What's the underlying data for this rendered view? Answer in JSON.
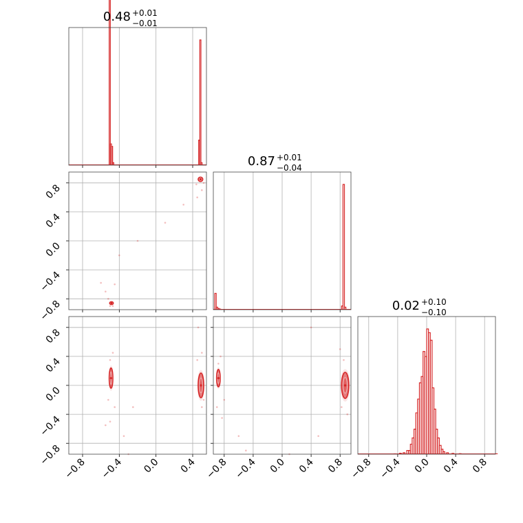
{
  "chart_data": {
    "type": "corner",
    "color": "#d62728",
    "grid": true,
    "tick_values": [
      -0.8,
      -0.4,
      0.0,
      0.4,
      0.8
    ],
    "tick_labels": [
      "−0.8",
      "−0.4",
      "0.0",
      "0.4",
      "0.8"
    ],
    "parameters": [
      {
        "range": [
          -0.95,
          0.55
        ],
        "median": "0.48",
        "upper": "+0.01",
        "lower": "−0.01",
        "histogram": {
          "bin_width": 0.0125,
          "bins": [
            [
              -0.51,
              2
            ],
            [
              -0.4975,
              0.17
            ],
            [
              -0.485,
              0.15
            ],
            [
              -0.4725,
              0.02
            ],
            [
              0.465,
              0.2
            ],
            [
              0.4775,
              1.0
            ],
            [
              0.49,
              0.02
            ]
          ]
        }
      },
      {
        "range": [
          -0.95,
          0.95
        ],
        "median": "0.87",
        "upper": "+0.01",
        "lower": "−0.04",
        "histogram": {
          "bin_width": 0.02,
          "bins": [
            [
              -0.93,
              0.13
            ],
            [
              -0.91,
              0.02
            ],
            [
              -0.89,
              0.01
            ],
            [
              -0.87,
              0.005
            ],
            [
              0.82,
              0.03
            ],
            [
              0.84,
              1.0
            ],
            [
              0.86,
              0.02
            ]
          ]
        }
      },
      {
        "range": [
          -0.95,
          0.95
        ],
        "median": "0.02",
        "upper": "+0.10",
        "lower": "−0.10",
        "histogram": {
          "bin_width": 0.025,
          "bins": [
            [
              -0.45,
              0.003
            ],
            [
              -0.375,
              0.008
            ],
            [
              -0.325,
              0.012
            ],
            [
              -0.275,
              0.03
            ],
            [
              -0.25,
              0.03
            ],
            [
              -0.225,
              0.08
            ],
            [
              -0.2,
              0.13
            ],
            [
              -0.175,
              0.2
            ],
            [
              -0.15,
              0.33
            ],
            [
              -0.125,
              0.44
            ],
            [
              -0.1,
              0.57
            ],
            [
              -0.075,
              0.62
            ],
            [
              -0.05,
              0.82
            ],
            [
              -0.025,
              0.78
            ],
            [
              0.0,
              1.0
            ],
            [
              0.025,
              0.97
            ],
            [
              0.05,
              0.91
            ],
            [
              0.075,
              0.53
            ],
            [
              0.1,
              0.36
            ],
            [
              0.125,
              0.2
            ],
            [
              0.15,
              0.13
            ],
            [
              0.175,
              0.07
            ],
            [
              0.2,
              0.04
            ],
            [
              0.225,
              0.02
            ],
            [
              0.275,
              0.012
            ],
            [
              0.35,
              0.006
            ],
            [
              0.45,
              0.004
            ],
            [
              0.95,
              0.003
            ]
          ]
        }
      }
    ],
    "pairs": [
      {
        "row": 1,
        "col": 0,
        "modes": [
          {
            "x": 0.485,
            "y": 0.85,
            "rx": 0.025,
            "ry": 0.03
          },
          {
            "x": -0.485,
            "y": -0.86,
            "rx": 0.02,
            "ry": 0.02
          }
        ],
        "scatter": [
          [
            -0.6,
            -0.58
          ],
          [
            -0.55,
            -0.7
          ],
          [
            -0.52,
            -0.8
          ],
          [
            -0.45,
            -0.6
          ],
          [
            -0.4,
            -0.2
          ],
          [
            -0.2,
            0.0
          ],
          [
            0.1,
            0.25
          ],
          [
            0.3,
            0.5
          ],
          [
            0.45,
            0.6
          ],
          [
            0.5,
            0.7
          ],
          [
            0.52,
            0.8
          ],
          [
            0.44,
            0.78
          ],
          [
            -0.47,
            -0.9
          ],
          [
            -0.5,
            -0.9
          ]
        ]
      },
      {
        "row": 2,
        "col": 0,
        "modes": [
          {
            "x": -0.49,
            "y": 0.1,
            "rx": 0.02,
            "ry": 0.14
          },
          {
            "x": 0.49,
            "y": 0.0,
            "rx": 0.03,
            "ry": 0.17
          }
        ],
        "scatter": [
          [
            -0.55,
            -0.55
          ],
          [
            -0.45,
            -0.3
          ],
          [
            -0.5,
            0.35
          ],
          [
            -0.47,
            0.45
          ],
          [
            -0.52,
            -0.2
          ],
          [
            -0.5,
            -0.5
          ],
          [
            0.45,
            0.35
          ],
          [
            0.5,
            -0.3
          ],
          [
            0.46,
            0.8
          ],
          [
            -0.35,
            -0.7
          ],
          [
            -0.3,
            -0.95
          ],
          [
            0.52,
            -0.2
          ],
          [
            -0.25,
            -0.3
          ],
          [
            0.5,
            0.45
          ]
        ]
      },
      {
        "row": 2,
        "col": 1,
        "modes": [
          {
            "x": -0.88,
            "y": 0.1,
            "rx": 0.025,
            "ry": 0.12
          },
          {
            "x": 0.87,
            "y": 0.0,
            "rx": 0.05,
            "ry": 0.18
          }
        ],
        "scatter": [
          [
            -0.9,
            -0.3
          ],
          [
            -0.85,
            0.4
          ],
          [
            -0.83,
            -0.45
          ],
          [
            -0.8,
            -0.2
          ],
          [
            0.4,
            0.8
          ],
          [
            0.85,
            0.35
          ],
          [
            0.9,
            -0.4
          ],
          [
            -0.6,
            -0.7
          ],
          [
            -0.5,
            -0.9
          ],
          [
            0.1,
            -0.95
          ],
          [
            0.5,
            -0.7
          ],
          [
            0.8,
            0.5
          ],
          [
            0.82,
            -0.3
          ],
          [
            -0.88,
            0.3
          ]
        ]
      }
    ]
  }
}
